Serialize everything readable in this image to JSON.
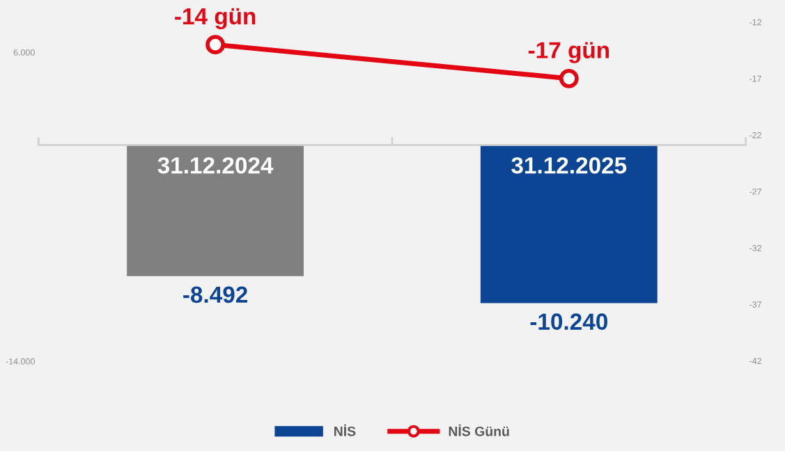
{
  "chart_data": {
    "type": "bar",
    "categories": [
      "31.12.2024",
      "31.12.2025"
    ],
    "series": [
      {
        "name": "NİS",
        "colors": [
          "#808080",
          "#0c4594"
        ],
        "color": "#0c4594",
        "values": [
          -8492,
          -10240
        ],
        "value_labels": [
          "-8.492",
          "-10.240"
        ]
      },
      {
        "name": "NİS Günü",
        "type": "line",
        "axis": "y2",
        "color": "#e30613",
        "values": [
          -14,
          -17
        ],
        "value_labels": [
          "-14 gün",
          "-17 gün"
        ],
        "marker": "circle"
      }
    ],
    "ylim": [
      -14000,
      6000
    ],
    "yticks": [
      {
        "value": 6000,
        "label": "6.000"
      },
      {
        "value": -14000,
        "label": "-14.000"
      }
    ],
    "y2lim": [
      -42,
      -12
    ],
    "y2ticks": [
      -12,
      -17,
      -22,
      -27,
      -32,
      -37,
      -42
    ],
    "grid": false,
    "legend": "bottom"
  }
}
